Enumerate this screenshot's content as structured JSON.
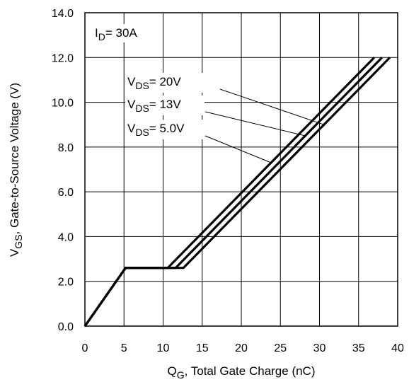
{
  "chart_data": {
    "type": "line",
    "xlim": [
      0,
      40
    ],
    "ylim": [
      0,
      14
    ],
    "x_ticks": [
      "0",
      "5",
      "10",
      "15",
      "20",
      "25",
      "30",
      "35",
      "40"
    ],
    "y_ticks": [
      "0.0",
      "2.0",
      "4.0",
      "6.0",
      "8.0",
      "10.0",
      "12.0",
      "14.0"
    ],
    "grid": true,
    "x_axis_label": {
      "main": "Q",
      "sub": "G",
      "rest": ",  Total Gate Charge (nC)"
    },
    "y_axis_label": {
      "main": "V",
      "sub": "GS",
      "rest": ", Gate-to-Source Voltage (V)"
    },
    "condition": {
      "main": "I",
      "sub": "D",
      "rest": "= 30A"
    },
    "series": [
      {
        "name_main": "V",
        "name_sub": "DS",
        "name_rest": "= 20V",
        "x": [
          0,
          5.2,
          12.6,
          39.0
        ],
        "y": [
          0,
          2.6,
          2.6,
          12.0
        ]
      },
      {
        "name_main": "V",
        "name_sub": "DS",
        "name_rest": "= 13V",
        "x": [
          0,
          5.2,
          11.6,
          38.0
        ],
        "y": [
          0,
          2.6,
          2.6,
          12.0
        ]
      },
      {
        "name_main": "V",
        "name_sub": "DS",
        "name_rest": "= 5.0V",
        "x": [
          0,
          5.2,
          10.6,
          37.0
        ],
        "y": [
          0,
          2.6,
          2.6,
          12.0
        ]
      }
    ]
  }
}
